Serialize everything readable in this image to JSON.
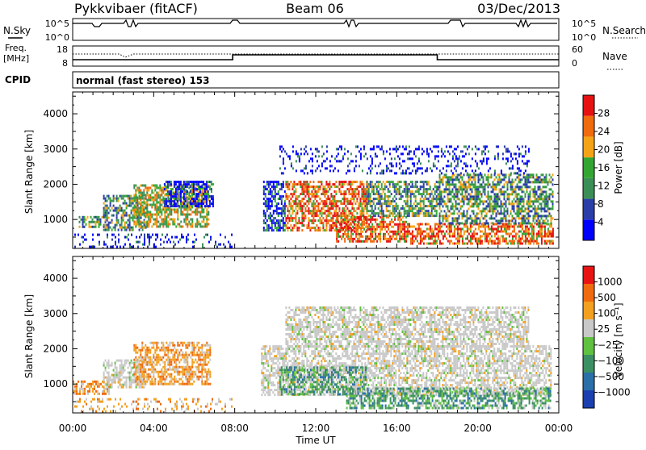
{
  "header": {
    "title_left": "Pykkvibaer (fitACF)",
    "title_center": "Beam 06",
    "title_right": "03/Dec/2013"
  },
  "status_panels": {
    "nsky_label": "N.Sky",
    "nsky_ticks": [
      "10^5",
      "10^0"
    ],
    "nsearch_label": "N.Search",
    "nsearch_ticks": [
      "10^5",
      "10^0"
    ],
    "freq_label_1": "Freq.",
    "freq_label_2": "[MHz]",
    "freq_ticks": [
      "18",
      "8"
    ],
    "nave_label": "Nave",
    "nave_ticks": [
      "60",
      "0"
    ],
    "cpid_label": "CPID",
    "cpid_text": "normal (fast stereo) 153"
  },
  "chart_data": [
    {
      "type": "heatmap",
      "name": "power",
      "ylabel": "Slant Range [km]",
      "ylim": [
        180,
        4620
      ],
      "yticks": [
        "1000",
        "2000",
        "3000",
        "4000"
      ],
      "xlim_hours": [
        0,
        24
      ],
      "colorbar": {
        "label": "Power [dB]",
        "ticks": [
          "28",
          "24",
          "20",
          "16",
          "12",
          "8",
          "4"
        ],
        "colors": [
          "#0000ff",
          "#2a3ea8",
          "#3b8f56",
          "#33a533",
          "#f5a316",
          "#f06a0e",
          "#e61212"
        ]
      },
      "regions": [
        {
          "h0": 0.0,
          "h1": 7.9,
          "r0": 200,
          "r1": 600,
          "level": "sparse-blue"
        },
        {
          "h0": 0.3,
          "h1": 1.6,
          "r0": 800,
          "r1": 1100,
          "level": "mixed-green"
        },
        {
          "h0": 1.5,
          "h1": 3.6,
          "r0": 700,
          "r1": 1700,
          "level": "mixed-green"
        },
        {
          "h0": 3.0,
          "h1": 6.7,
          "r0": 800,
          "r1": 2000,
          "level": "green-orange"
        },
        {
          "h0": 4.5,
          "h1": 6.9,
          "r0": 1350,
          "r1": 2100,
          "level": "blue-green"
        },
        {
          "h0": 9.4,
          "h1": 10.5,
          "r0": 700,
          "r1": 2100,
          "level": "blue-green"
        },
        {
          "h0": 10.5,
          "h1": 14.5,
          "r0": 700,
          "r1": 2100,
          "level": "red-orange"
        },
        {
          "h0": 13.0,
          "h1": 16.5,
          "r0": 350,
          "r1": 1100,
          "level": "red-orange"
        },
        {
          "h0": 14.5,
          "h1": 18.0,
          "r0": 1100,
          "r1": 2100,
          "level": "mixed-green"
        },
        {
          "h0": 16.5,
          "h1": 23.7,
          "r0": 350,
          "r1": 900,
          "level": "red-orange"
        },
        {
          "h0": 18.0,
          "h1": 23.7,
          "r0": 900,
          "r1": 2300,
          "level": "mixed-green"
        },
        {
          "h0": 10.2,
          "h1": 22.5,
          "r0": 2300,
          "r1": 3100,
          "level": "sparse-blue"
        }
      ]
    },
    {
      "type": "heatmap",
      "name": "velocity",
      "ylabel": "Slant Range [km]",
      "xlabel": "Time UT",
      "ylim": [
        180,
        4620
      ],
      "yticks": [
        "1000",
        "2000",
        "3000",
        "4000"
      ],
      "xticks": [
        "00:00",
        "04:00",
        "08:00",
        "12:00",
        "16:00",
        "20:00",
        "00:00"
      ],
      "colorbar": {
        "label": "Velocity [m s⁻¹]",
        "ticks": [
          "1000",
          "500",
          "100",
          "25",
          "−25",
          "−100",
          "−500",
          "−1000"
        ],
        "colors": [
          "#1c3fb0",
          "#2a6fa8",
          "#3c8f62",
          "#60c040",
          "#c8c8c8",
          "#f3a020",
          "#f06a10",
          "#e81414"
        ]
      },
      "regions": [
        {
          "h0": 0.0,
          "h1": 7.9,
          "r0": 200,
          "r1": 600,
          "level": "sparse-orange"
        },
        {
          "h0": 0.0,
          "h1": 1.8,
          "r0": 750,
          "r1": 1100,
          "level": "orange"
        },
        {
          "h0": 1.5,
          "h1": 3.5,
          "r0": 900,
          "r1": 1700,
          "level": "gray"
        },
        {
          "h0": 3.0,
          "h1": 6.8,
          "r0": 1000,
          "r1": 2200,
          "level": "orange"
        },
        {
          "h0": 9.3,
          "h1": 23.6,
          "r0": 700,
          "r1": 2100,
          "level": "gray"
        },
        {
          "h0": 10.2,
          "h1": 14.5,
          "r0": 700,
          "r1": 1500,
          "level": "teal-green"
        },
        {
          "h0": 13.5,
          "h1": 23.6,
          "r0": 350,
          "r1": 900,
          "level": "teal-green"
        },
        {
          "h0": 10.5,
          "h1": 22.5,
          "r0": 2100,
          "r1": 3200,
          "level": "gray"
        }
      ]
    }
  ]
}
